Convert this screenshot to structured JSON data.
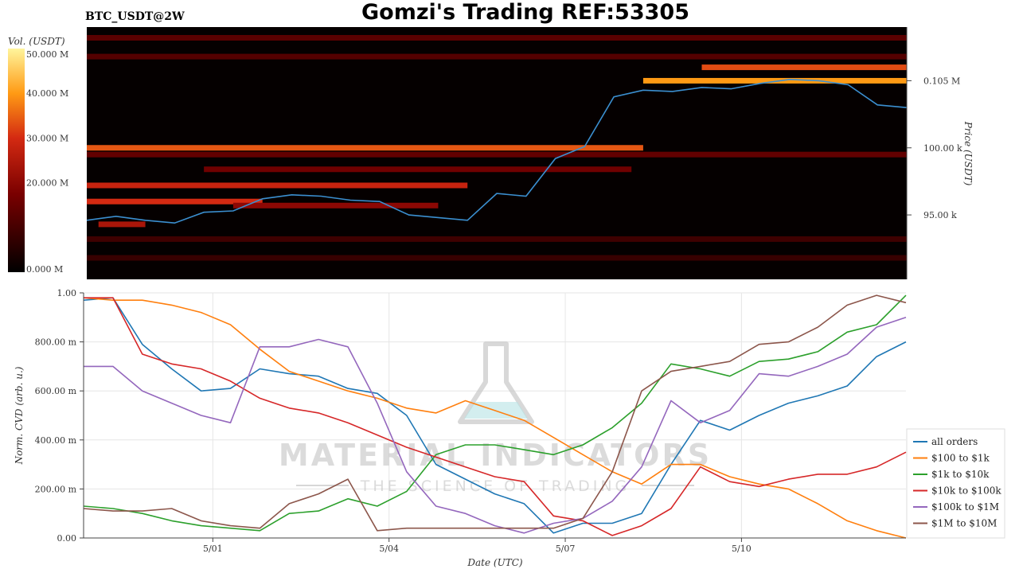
{
  "header": {
    "title": "Gomzi's Trading REF:53305",
    "pair": "BTC_USDT@2W"
  },
  "watermark": {
    "name": "MATERIAL INDICATORS",
    "tagline": "THE SCIENCE OF TRADING"
  },
  "colors": {
    "price_line": "#3b8fd0",
    "heat_low": "#000000",
    "heat_mid": "#c81e12",
    "heat_high": "#ffe14a"
  },
  "chart_data": [
    {
      "type": "heatmap",
      "name": "order-book-liquidity",
      "colorbar": {
        "label": "Vol. (USDT)",
        "ticks": [
          "0.000 M",
          "20.000 M",
          "30.000 M",
          "40.000 M",
          "50.000 M"
        ],
        "range": [
          0,
          50
        ]
      },
      "price_axis": {
        "label": "Price (USDT)",
        "ticks": [
          {
            "value": 95000,
            "label": "95.00 k"
          },
          {
            "value": 100000,
            "label": "100.00 k"
          },
          {
            "value": 105000,
            "label": "0.105 M"
          }
        ],
        "range": [
          90200,
          109000
        ]
      },
      "time_range": [
        0,
        14
      ],
      "price_series": {
        "name": "BTC price",
        "x": [
          0,
          0.5,
          1,
          1.5,
          2,
          2.5,
          3,
          3.5,
          4,
          4.5,
          5,
          5.5,
          6,
          6.5,
          7,
          7.5,
          8,
          8.5,
          9,
          9.5,
          10,
          10.5,
          11,
          11.5,
          12,
          12.5,
          13,
          13.5,
          14
        ],
        "y": [
          94600,
          94900,
          94600,
          94400,
          95200,
          95300,
          96200,
          96500,
          96400,
          96100,
          96000,
          95000,
          94800,
          94600,
          96600,
          96400,
          99200,
          100100,
          103800,
          104300,
          104200,
          104500,
          104400,
          104800,
          105100,
          105000,
          104700,
          103200,
          103000
        ]
      },
      "liquidity_bands": [
        {
          "price": 100000,
          "t_start": 0.0,
          "t_end": 9.5,
          "vol": 34
        },
        {
          "price": 97200,
          "t_start": 0.0,
          "t_end": 6.5,
          "vol": 28
        },
        {
          "price": 96000,
          "t_start": 0.0,
          "t_end": 3.0,
          "vol": 30
        },
        {
          "price": 95700,
          "t_start": 2.5,
          "t_end": 6.0,
          "vol": 20
        },
        {
          "price": 94300,
          "t_start": 0.2,
          "t_end": 1.0,
          "vol": 24
        },
        {
          "price": 99500,
          "t_start": 0.0,
          "t_end": 14.0,
          "vol": 14
        },
        {
          "price": 98400,
          "t_start": 2.0,
          "t_end": 9.3,
          "vol": 16
        },
        {
          "price": 105000,
          "t_start": 9.5,
          "t_end": 14.0,
          "vol": 40
        },
        {
          "price": 106000,
          "t_start": 10.5,
          "t_end": 14.0,
          "vol": 33
        },
        {
          "price": 106800,
          "t_start": 0.0,
          "t_end": 14.0,
          "vol": 12
        },
        {
          "price": 108200,
          "t_start": 0.0,
          "t_end": 14.0,
          "vol": 13
        },
        {
          "price": 93200,
          "t_start": 0.0,
          "t_end": 14.0,
          "vol": 9
        },
        {
          "price": 91800,
          "t_start": 0.0,
          "t_end": 14.0,
          "vol": 8
        }
      ]
    },
    {
      "type": "line",
      "name": "normalized-cvd",
      "xlabel": "Date (UTC)",
      "ylabel": "Norm. CVD (arb. u.)",
      "ylim": [
        0,
        1
      ],
      "xlim": [
        0,
        14
      ],
      "x_ticks": [
        {
          "value": 2.2,
          "label": "5/01"
        },
        {
          "value": 5.2,
          "label": "5/04"
        },
        {
          "value": 8.2,
          "label": "5/07"
        },
        {
          "value": 11.2,
          "label": "5/10"
        }
      ],
      "y_ticks": [
        {
          "value": 0,
          "label": "0.00"
        },
        {
          "value": 0.2,
          "label": "200.00 m"
        },
        {
          "value": 0.4,
          "label": "400.00 m"
        },
        {
          "value": 0.6,
          "label": "600.00 m"
        },
        {
          "value": 0.8,
          "label": "800.00 m"
        },
        {
          "value": 1,
          "label": "1.00"
        }
      ],
      "legend_position": "bottom-right",
      "x": [
        0,
        0.5,
        1,
        1.5,
        2,
        2.5,
        3,
        3.5,
        4,
        4.5,
        5,
        5.5,
        6,
        6.5,
        7,
        7.5,
        8,
        8.5,
        9,
        9.5,
        10,
        10.5,
        11,
        11.5,
        12,
        12.5,
        13,
        13.5,
        14
      ],
      "series": [
        {
          "name": "all orders",
          "color": "#1f77b4",
          "values": [
            0.97,
            0.98,
            0.79,
            0.69,
            0.6,
            0.61,
            0.69,
            0.67,
            0.66,
            0.61,
            0.59,
            0.5,
            0.3,
            0.24,
            0.18,
            0.14,
            0.02,
            0.06,
            0.06,
            0.1,
            0.3,
            0.48,
            0.44,
            0.5,
            0.55,
            0.58,
            0.62,
            0.74,
            0.8
          ]
        },
        {
          "name": "$100 to $1k",
          "color": "#ff7f0e",
          "values": [
            0.98,
            0.97,
            0.97,
            0.95,
            0.92,
            0.87,
            0.77,
            0.68,
            0.64,
            0.6,
            0.57,
            0.53,
            0.51,
            0.56,
            0.52,
            0.48,
            0.41,
            0.34,
            0.27,
            0.22,
            0.3,
            0.3,
            0.25,
            0.22,
            0.2,
            0.14,
            0.07,
            0.03,
            0.0
          ]
        },
        {
          "name": "$1k to $10k",
          "color": "#2ca02c",
          "values": [
            0.13,
            0.12,
            0.1,
            0.07,
            0.05,
            0.04,
            0.03,
            0.1,
            0.11,
            0.16,
            0.13,
            0.19,
            0.34,
            0.38,
            0.38,
            0.36,
            0.34,
            0.38,
            0.45,
            0.55,
            0.71,
            0.69,
            0.66,
            0.72,
            0.73,
            0.76,
            0.84,
            0.87,
            0.99
          ]
        },
        {
          "name": "$10k to $100k",
          "color": "#d62728",
          "values": [
            0.98,
            0.98,
            0.75,
            0.71,
            0.69,
            0.64,
            0.57,
            0.53,
            0.51,
            0.47,
            0.42,
            0.37,
            0.33,
            0.29,
            0.25,
            0.23,
            0.09,
            0.07,
            0.01,
            0.05,
            0.12,
            0.29,
            0.23,
            0.21,
            0.24,
            0.26,
            0.26,
            0.29,
            0.35
          ]
        },
        {
          "name": "$100k to $1M",
          "color": "#9467bd",
          "values": [
            0.7,
            0.7,
            0.6,
            0.55,
            0.5,
            0.47,
            0.78,
            0.78,
            0.81,
            0.78,
            0.55,
            0.27,
            0.13,
            0.1,
            0.05,
            0.02,
            0.06,
            0.08,
            0.15,
            0.29,
            0.56,
            0.47,
            0.52,
            0.67,
            0.66,
            0.7,
            0.75,
            0.86,
            0.9
          ]
        },
        {
          "name": "$1M to $10M",
          "color": "#8c564b",
          "values": [
            0.12,
            0.11,
            0.11,
            0.12,
            0.07,
            0.05,
            0.04,
            0.14,
            0.18,
            0.24,
            0.03,
            0.04,
            0.04,
            0.04,
            0.04,
            0.04,
            0.04,
            0.08,
            0.27,
            0.6,
            0.68,
            0.7,
            0.72,
            0.79,
            0.8,
            0.86,
            0.95,
            0.99,
            0.96
          ]
        }
      ]
    }
  ]
}
